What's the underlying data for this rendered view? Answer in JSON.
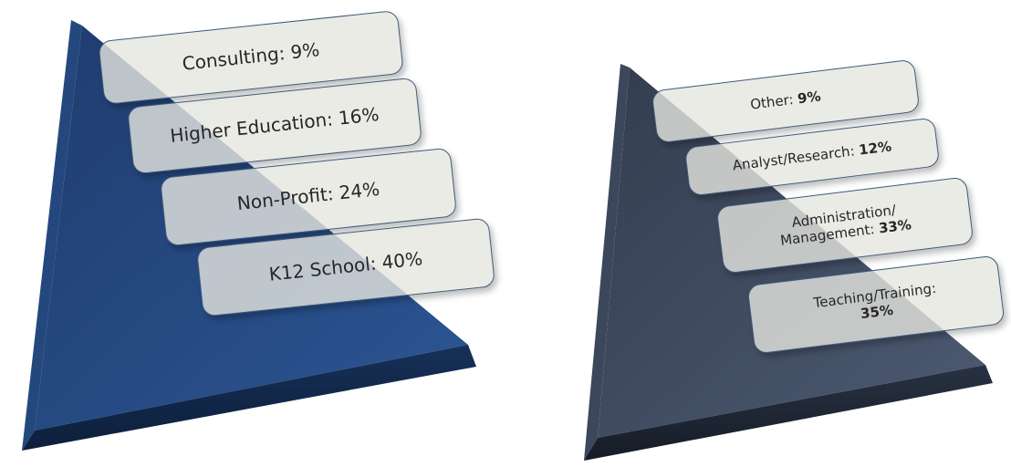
{
  "pyramids": [
    {
      "colors": {
        "face_top": "#1f3c6e",
        "face_bottom": "#2c5694",
        "base_top": "#163057",
        "base_bottom": "#0d1f3b",
        "edge": "#24487d"
      },
      "boxes": [
        {
          "text": "Consulting: 9%"
        },
        {
          "text": "Higher Education: 16%"
        },
        {
          "text": "Non-Profit: 24%"
        },
        {
          "text": "K12 School: 40%"
        }
      ]
    },
    {
      "colors": {
        "face_top": "#333d4f",
        "face_bottom": "#4d5a72",
        "base_top": "#283242",
        "base_bottom": "#161c27",
        "edge": "#3c475c"
      },
      "boxes": [
        {
          "label": "Other:",
          "value": "9%"
        },
        {
          "label": "Analyst/Research:",
          "value": "12%"
        },
        {
          "label": "Administration/",
          "label2": "Management:",
          "value": "33%"
        },
        {
          "label": "Teaching/Training:",
          "value": "35%"
        }
      ]
    }
  ]
}
